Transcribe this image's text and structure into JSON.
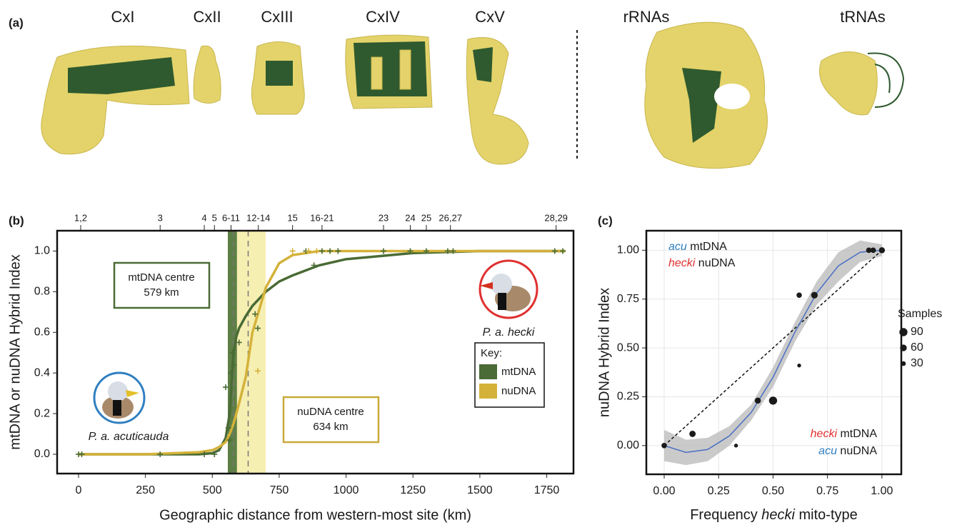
{
  "panel_a": {
    "label": "(a)",
    "complexes": [
      "CxI",
      "CxII",
      "CxIII",
      "CxIV",
      "CxV"
    ],
    "rnas": [
      "rRNAs",
      "tRNAs"
    ]
  },
  "chart_data": [
    {
      "type": "line",
      "panel_label": "(b)",
      "x_label": "Geographic distance from western-most site (km)",
      "y_label": "mtDNA or nuDNA Hybrid Index",
      "xlim": [
        -80,
        1850
      ],
      "ylim": [
        -0.095,
        1.1
      ],
      "xticks": [
        0,
        250,
        500,
        750,
        1000,
        1250,
        1500,
        1750
      ],
      "yticks": [
        {
          "value": 0,
          "label": "0.0"
        },
        {
          "value": 0.2,
          "label": "0.2"
        },
        {
          "value": 0.4,
          "label": "0.4"
        },
        {
          "value": 0.6,
          "label": "0.6"
        },
        {
          "value": 0.8,
          "label": "0.8"
        },
        {
          "value": 1,
          "label": "1.0"
        }
      ],
      "top_ticks": [
        {
          "value": 8,
          "label": "1,2"
        },
        {
          "value": 305,
          "label": "3"
        },
        {
          "value": 470,
          "label": "4"
        },
        {
          "value": 508,
          "label": "5"
        },
        {
          "value": 570,
          "label": "6-11"
        },
        {
          "value": 672,
          "label": "12-14"
        },
        {
          "value": 800,
          "label": "15"
        },
        {
          "value": 910,
          "label": "16-21"
        },
        {
          "value": 1140,
          "label": "23"
        },
        {
          "value": 1240,
          "label": "24"
        },
        {
          "value": 1300,
          "label": "25"
        },
        {
          "value": 1390,
          "label": "26,27"
        },
        {
          "value": 1785,
          "label": "28,29"
        }
      ],
      "series": [
        {
          "name": "mtDNA",
          "color": "#4a6b35",
          "x": [
            0,
            250,
            450,
            500,
            525,
            550,
            565,
            579,
            590,
            600,
            625,
            650,
            700,
            750,
            800,
            900,
            1000,
            1250,
            1500,
            1820
          ],
          "values": [
            0,
            0,
            0,
            0.005,
            0.02,
            0.08,
            0.2,
            0.5,
            0.58,
            0.62,
            0.68,
            0.73,
            0.8,
            0.85,
            0.88,
            0.93,
            0.96,
            0.99,
            1,
            1
          ],
          "points_x": [
            0,
            12,
            305,
            470,
            508,
            550,
            560,
            565,
            570,
            575,
            580,
            600,
            660,
            670,
            850,
            880,
            910,
            940,
            970,
            1140,
            1240,
            1300,
            1380,
            1400,
            1780,
            1810
          ],
          "points_values": [
            0,
            0,
            0,
            0,
            0,
            0.33,
            0.13,
            0.07,
            0.4,
            0.5,
            0.44,
            0.55,
            0.69,
            0.62,
            1,
            0.93,
            1,
            1,
            1,
            1,
            1,
            1,
            1,
            1,
            1,
            1
          ]
        },
        {
          "name": "nuDNA",
          "color": "#d4b23a",
          "x": [
            0,
            250,
            450,
            500,
            525,
            550,
            565,
            579,
            590,
            600,
            625,
            650,
            700,
            750,
            800,
            900,
            1000,
            1250,
            1500,
            1820
          ],
          "values": [
            0,
            0,
            0.01,
            0.02,
            0.035,
            0.06,
            0.1,
            0.15,
            0.2,
            0.25,
            0.38,
            0.6,
            0.82,
            0.94,
            0.98,
            1,
            1,
            1,
            1,
            1
          ],
          "points_x": [
            670,
            800,
            860,
            890
          ],
          "points_values": [
            0.41,
            1,
            1,
            1
          ]
        }
      ],
      "legend_title": "Key:",
      "centre_bands": [
        {
          "from": 565,
          "to": 700,
          "color": "#f6efb2"
        },
        {
          "from": 558,
          "to": 592,
          "color": "#5d7f45"
        }
      ],
      "centre_lines": [
        579,
        634
      ],
      "annotations": [
        {
          "lines": [
            "mtDNA centre",
            "579 km"
          ],
          "color": "#4a6b35"
        },
        {
          "lines": [
            "nuDNA centre",
            "634 km"
          ],
          "color": "#c9a93a"
        }
      ],
      "populations": [
        "P. a. acuticauda",
        "P. a. hecki"
      ]
    },
    {
      "type": "scatter",
      "panel_label": "(c)",
      "x_label": [
        "Frequency ",
        "hecki",
        " mito-type"
      ],
      "y_label": "nuDNA Hybrid Index",
      "xlim": [
        -0.082,
        1.089
      ],
      "ylim": [
        -0.147,
        1.1
      ],
      "xticks": [
        {
          "value": 0,
          "label": "0.00"
        },
        {
          "value": 0.25,
          "label": "0.25"
        },
        {
          "value": 0.5,
          "label": "0.50"
        },
        {
          "value": 0.75,
          "label": "0.75"
        },
        {
          "value": 1,
          "label": "1.00"
        }
      ],
      "yticks": [
        {
          "value": 0,
          "label": "0.00"
        },
        {
          "value": 0.25,
          "label": "0.25"
        },
        {
          "value": 0.5,
          "label": "0.50"
        },
        {
          "value": 0.75,
          "label": "0.75"
        },
        {
          "value": 1,
          "label": "1.00"
        }
      ],
      "grid": true,
      "color": "#1a1a1a",
      "x": [
        0,
        0.13,
        0.33,
        0.43,
        0.5,
        0.62,
        0.62,
        0.69,
        0.94,
        0.96,
        1
      ],
      "values": [
        0,
        0.06,
        0,
        0.23,
        0.23,
        0.77,
        0.41,
        0.77,
        1,
        1,
        1
      ],
      "sizes": [
        40,
        55,
        20,
        50,
        90,
        40,
        20,
        60,
        40,
        40,
        50
      ],
      "fit": {
        "color": "#4a6fc4",
        "x": [
          0,
          0.1,
          0.2,
          0.3,
          0.4,
          0.5,
          0.6,
          0.7,
          0.8,
          0.9,
          1
        ],
        "values": [
          0,
          -0.035,
          -0.02,
          0.05,
          0.17,
          0.35,
          0.58,
          0.78,
          0.92,
          0.99,
          1
        ],
        "lower": [
          -0.08,
          -0.1,
          -0.08,
          0,
          0.13,
          0.3,
          0.53,
          0.72,
          0.84,
          0.94,
          0.97
        ],
        "upper": [
          0.08,
          0.03,
          0.04,
          0.1,
          0.21,
          0.4,
          0.63,
          0.84,
          0.99,
          1.05,
          1.03
        ]
      },
      "reference_line": {
        "x": [
          0,
          1
        ],
        "values": [
          0,
          1
        ]
      },
      "size_legend": {
        "title": "Samples",
        "values": [
          90,
          60,
          30
        ]
      },
      "corner_labels": {
        "top_left": [
          [
            {
              "text": "acu",
              "color": "#2f7fc1"
            },
            {
              "text": " mtDNA"
            }
          ],
          [
            {
              "text": "hecki",
              "color": "#e03030"
            },
            {
              "text": " nuDNA"
            }
          ]
        ],
        "bottom_right": [
          [
            {
              "text": "hecki",
              "color": "#e03030"
            },
            {
              "text": " mtDNA"
            }
          ],
          [
            {
              "text": "acu",
              "color": "#2f7fc1"
            },
            {
              "text": " nuDNA"
            }
          ]
        ]
      }
    }
  ]
}
